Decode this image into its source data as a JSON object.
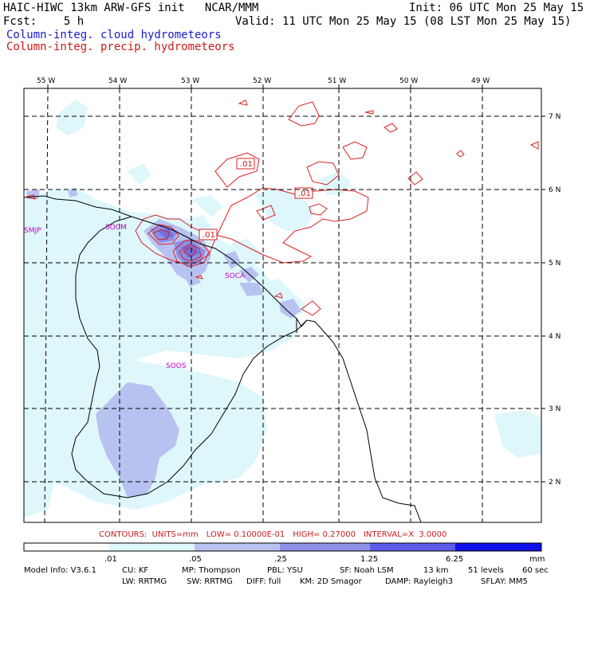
{
  "header": {
    "title": "HAIC-HIWC 13km ARW-GFS init   NCAR/MMM",
    "init": "Init: 06 UTC Mon 25 May 15",
    "fcst": "Fcst:    5 h",
    "valid": "Valid: 11 UTC Mon 25 May 15 (08 LST Mon 25 May 15)",
    "field_cloud": "Column-integ. cloud hydrometeors",
    "field_precip": "Column-integ. precip. hydrometeors"
  },
  "map": {
    "lon_labels": [
      "55 W",
      "54 W",
      "53 W",
      "52 W",
      "51 W",
      "50 W",
      "49 W"
    ],
    "lat_labels": [
      "7 N",
      "6 N",
      "5 N",
      "4 N",
      "3 N",
      "2 N"
    ],
    "stations": [
      "SMJP",
      "SOCM",
      "SOCA",
      "SOOS"
    ],
    "contour_labels": [
      ".01",
      ".01",
      ".01"
    ],
    "colors": {
      "cloud_shade_1": "#ddf7fb",
      "cloud_shade_2": "#a8b8ef",
      "cloud_shade_3": "#7070e0",
      "precip_contour": "#dd2222",
      "coastline": "#000000",
      "grid": "#000000",
      "station": "#cc00cc"
    }
  },
  "contour_info": {
    "contours": "CONTOURS:  UNITS=mm",
    "low": "LOW= 0.10000E-01",
    "high": "HIGH= 0.27000",
    "interval": "INTERVAL=X  3.0000"
  },
  "colorbar": {
    "labels": [
      ".01",
      ".05",
      ".25",
      "1.25",
      "6.25",
      "mm"
    ],
    "colors": [
      "#ffffff",
      "#ddf7fb",
      "#b8c2f0",
      "#9090e8",
      "#5c5ce8",
      "#1010e8"
    ]
  },
  "model_info": {
    "line1": [
      "Model Info: V3.6.1",
      "CU: KF",
      "MP: Thompson",
      "PBL: YSU",
      "SF: Noah LSM",
      "13 km",
      "51 levels",
      "60 sec"
    ],
    "line2": [
      "LW: RRTMG",
      "SW: RRTMG",
      "DIFF: full",
      "KM: 2D Smagor",
      "DAMP: Rayleigh3",
      "SFLAY: MM5"
    ]
  }
}
